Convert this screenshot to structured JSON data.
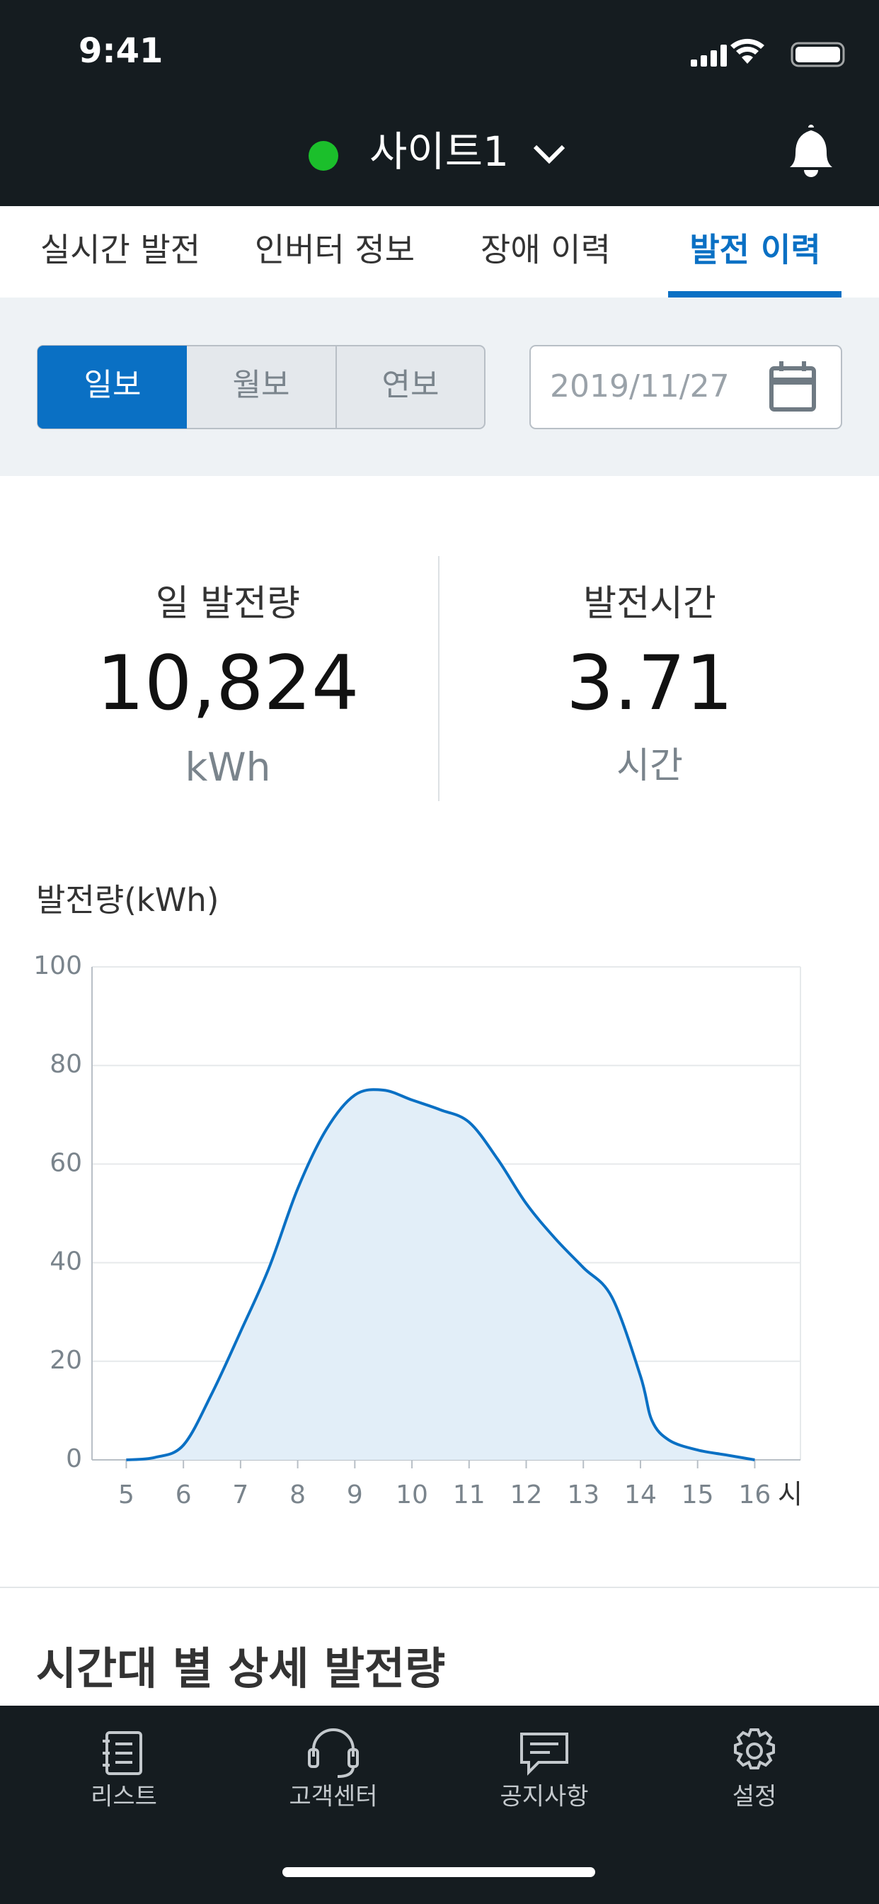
{
  "status_bar": {
    "time": "9:41"
  },
  "header": {
    "site": "사이트1"
  },
  "tabs": [
    "실시간 발전",
    "인버터 정보",
    "장애 이력",
    "발전 이력"
  ],
  "period_buttons": [
    "일보",
    "월보",
    "연보"
  ],
  "date": "2019/11/27",
  "stats": [
    {
      "label": "일 발전량",
      "value": "10,824",
      "unit": "kWh"
    },
    {
      "label": "발전시간",
      "value": "3.71",
      "unit": "시간"
    }
  ],
  "chart_data": {
    "type": "area",
    "y_label": "발전량(kWh)",
    "x_unit": "시",
    "x": [
      5,
      5.5,
      6,
      6.5,
      7,
      7.5,
      8,
      8.5,
      9,
      9.5,
      10,
      10.5,
      11,
      11.5,
      12,
      12.5,
      13,
      13.5,
      14,
      14.2,
      14.5,
      15,
      15.5,
      16
    ],
    "values": [
      0,
      0.5,
      3,
      13.5,
      26,
      39,
      55,
      67,
      74,
      75,
      73,
      71,
      68.5,
      61,
      52,
      45,
      39,
      33,
      17,
      8,
      4,
      2,
      1,
      0
    ],
    "color": "#0a70c4",
    "fill": "#e2eef8",
    "xlim": [
      4.4,
      16.8
    ],
    "xticks": [
      5,
      6,
      7,
      8,
      9,
      10,
      11,
      12,
      13,
      14,
      15,
      16
    ],
    "ylim": [
      0,
      100
    ],
    "yticks": [
      0,
      20,
      40,
      60,
      80,
      100
    ],
    "grid": true
  },
  "section_title": "시간대 별 상세 발전량",
  "bottom_nav": [
    "리스트",
    "고객센터",
    "공지사항",
    "설정"
  ]
}
